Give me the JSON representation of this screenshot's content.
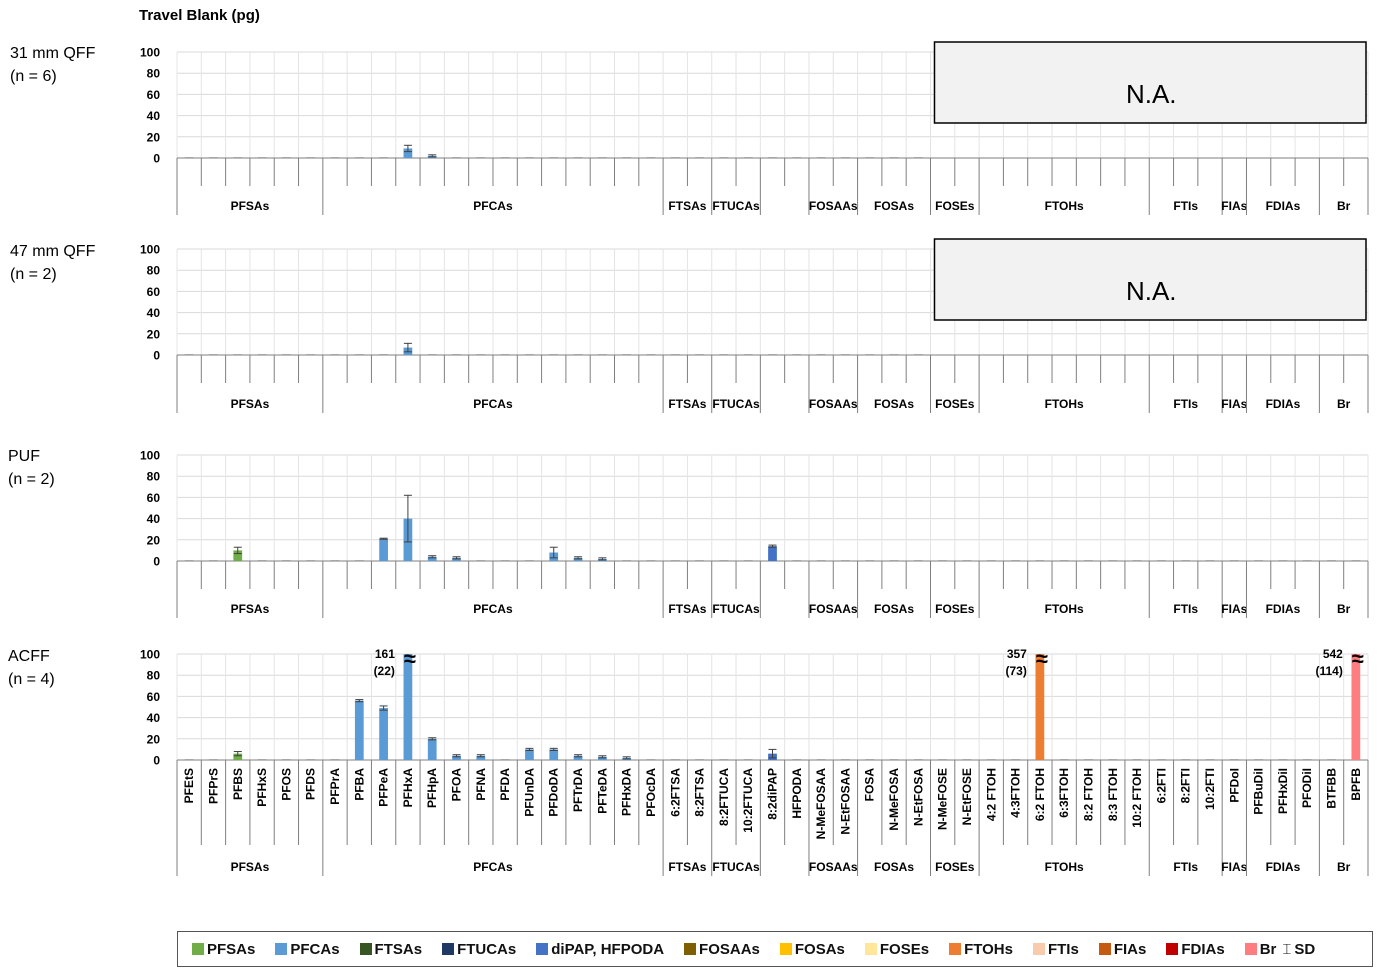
{
  "title": "Travel Blank (pg)",
  "legend": [
    {
      "name": "PFSAs",
      "color": "#70ad47"
    },
    {
      "name": "PFCAs",
      "color": "#5b9bd5"
    },
    {
      "name": "FTSAs",
      "color": "#375623"
    },
    {
      "name": "FTUCAs",
      "color": "#1f3864"
    },
    {
      "name": "diPAP, HFPODA",
      "color": "#4472c4"
    },
    {
      "name": "FOSAAs",
      "color": "#7f6000"
    },
    {
      "name": "FOSAs",
      "color": "#ffc000"
    },
    {
      "name": "FOSEs",
      "color": "#ffe699"
    },
    {
      "name": "FTOHs",
      "color": "#ed7d31"
    },
    {
      "name": "FTIs",
      "color": "#f8cbad"
    },
    {
      "name": "FIAs",
      "color": "#c55a11"
    },
    {
      "name": "FDIAs",
      "color": "#c00000"
    },
    {
      "name": "Br",
      "color": "#ff7c80"
    }
  ],
  "sd_label": "SD",
  "chart_data": {
    "type": "bar",
    "y_ticks": [
      "100",
      "80",
      "60",
      "40",
      "20",
      "0"
    ],
    "ylim": [
      0,
      100
    ],
    "na_label": "N.A.",
    "compounds": [
      "PFEtS",
      "PFPrS",
      "PFBS",
      "PFHxS",
      "PFOS",
      "PFDS",
      "PFPrA",
      "PFBA",
      "PFPeA",
      "PFHxA",
      "PFHpA",
      "PFOA",
      "PFNA",
      "PFDA",
      "PFUnDA",
      "PFDoDA",
      "PFTrDA",
      "PFTeDA",
      "PFHxDA",
      "PFOcDA",
      "6:2FTSA",
      "8:2FTSA",
      "8:2FTUCA",
      "10:2FTUCA",
      "8:2diPAP",
      "HFPODA",
      "N-MeFOSAA",
      "N-EtFOSAA",
      "FOSA",
      "N-MeFOSA",
      "N-EtFOSA",
      "N-MeFOSE",
      "N-EtFOSE",
      "4:2 FTOH",
      "4:3FTOH",
      "6:2 FTOH",
      "6:3FTOH",
      "8:2 FTOH",
      "8:3 FTOH",
      "10:2 FTOH",
      "6:2FTI",
      "8:2FTI",
      "10:2FTI",
      "PFDoI",
      "PFBuDiI",
      "PFHxDiI",
      "PFODiI",
      "BTFBB",
      "BPFB"
    ],
    "compound_group": [
      0,
      0,
      0,
      0,
      0,
      0,
      1,
      1,
      1,
      1,
      1,
      1,
      1,
      1,
      1,
      1,
      1,
      1,
      1,
      1,
      2,
      2,
      3,
      3,
      4,
      4,
      5,
      5,
      6,
      6,
      6,
      7,
      7,
      8,
      8,
      8,
      8,
      8,
      8,
      8,
      9,
      9,
      9,
      10,
      11,
      11,
      11,
      12,
      12
    ],
    "groups": [
      {
        "name": "PFSAs",
        "count": 6
      },
      {
        "name": "PFCAs",
        "count": 14
      },
      {
        "name": "FTSAs",
        "count": 2
      },
      {
        "name": "FTUCAs",
        "count": 2
      },
      {
        "name": "",
        "count": 2
      },
      {
        "name": "FOSAAs",
        "count": 2
      },
      {
        "name": "FOSAs",
        "count": 3
      },
      {
        "name": "FOSEs",
        "count": 2
      },
      {
        "name": "FTOHs",
        "count": 7
      },
      {
        "name": "FTIs",
        "count": 3
      },
      {
        "name": "FIAs",
        "count": 1
      },
      {
        "name": "FDIAs",
        "count": 3
      },
      {
        "name": "Br",
        "count": 2
      }
    ],
    "panels": [
      {
        "label_line1": "31 mm QFF",
        "label_line2": "(n = 6)",
        "na_from_index": 31,
        "values": {
          "PFHxA": 9,
          "PFHpA": 2
        },
        "errors": {
          "PFHxA": 3,
          "PFHpA": 1
        }
      },
      {
        "label_line1": "47 mm QFF",
        "label_line2": "(n = 2)",
        "na_from_index": 31,
        "values": {
          "PFHxA": 7
        },
        "errors": {
          "PFHxA": 4
        }
      },
      {
        "label_line1": "PUF",
        "label_line2": "(n = 2)",
        "values": {
          "PFBS": 10,
          "PFPeA": 21,
          "PFHxA": 40,
          "PFHpA": 4,
          "PFOA": 3,
          "PFDoDA": 8,
          "PFTrDA": 3,
          "PFTeDA": 2,
          "8:2diPAP": 14
        },
        "errors": {
          "PFBS": 3,
          "PFPeA": 0.5,
          "PFHxA": 22,
          "PFHpA": 1,
          "PFOA": 1,
          "PFDoDA": 5,
          "PFTrDA": 1,
          "PFTeDA": 1,
          "8:2diPAP": 1
        }
      },
      {
        "label_line1": "ACFF",
        "label_line2": "(n = 4)",
        "show_compound_labels": true,
        "values": {
          "PFBS": 6,
          "PFBA": 56,
          "PFPeA": 49,
          "PFHxA": 161,
          "PFHpA": 20,
          "PFOA": 4,
          "PFNA": 4,
          "PFUnDA": 10,
          "PFDoDA": 10,
          "PFTrDA": 4,
          "PFTeDA": 3,
          "PFHxDA": 2,
          "8:2diPAP": 6,
          "6:2 FTOH": 357,
          "BPFB": 542
        },
        "errors": {
          "PFBS": 2,
          "PFBA": 1,
          "PFPeA": 2,
          "PFHpA": 1,
          "PFOA": 1,
          "PFNA": 1,
          "PFUnDA": 1,
          "PFDoDA": 1,
          "PFTrDA": 1,
          "PFTeDA": 1,
          "PFHxDA": 1,
          "8:2diPAP": 4
        },
        "broken": [
          {
            "compound": "PFHxA",
            "value_label": "161",
            "sd_label": "(22)"
          },
          {
            "compound": "6:2 FTOH",
            "value_label": "357",
            "sd_label": "(73)"
          },
          {
            "compound": "BPFB",
            "value_label": "542",
            "sd_label": "(114)"
          }
        ]
      }
    ]
  }
}
